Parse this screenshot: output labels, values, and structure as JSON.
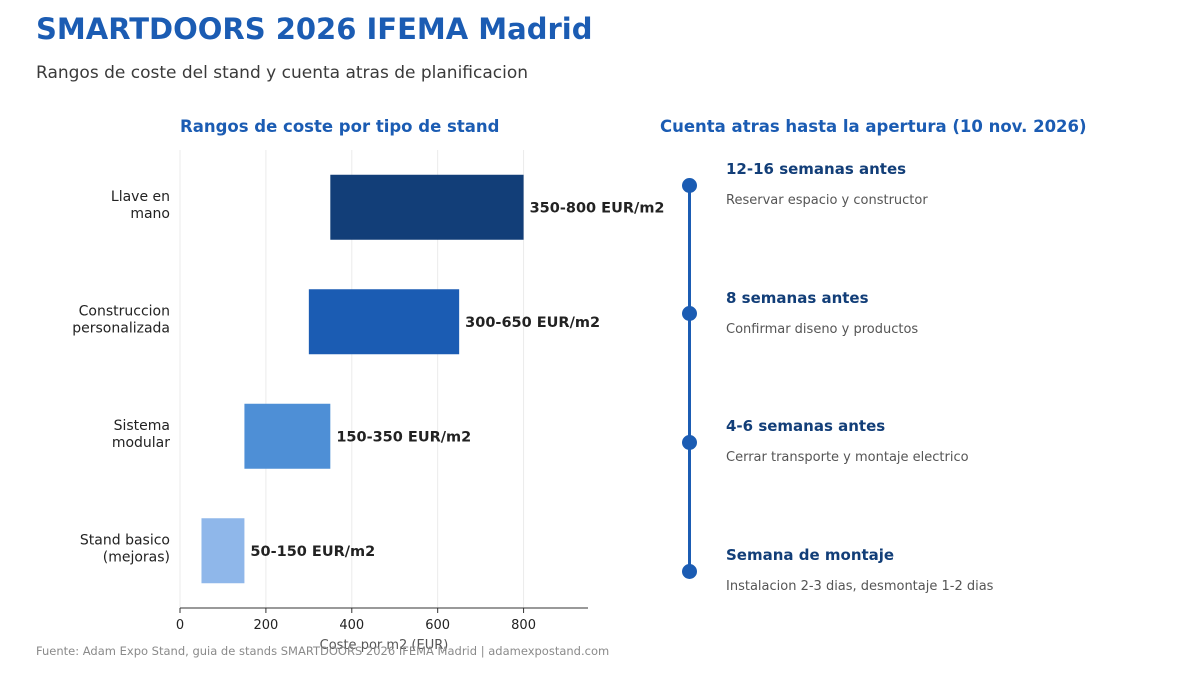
{
  "header": {
    "title": "SMARTDOORS 2026 IFEMA Madrid",
    "subtitle": "Rangos de coste del stand y cuenta atras de planificacion"
  },
  "chart_data": {
    "type": "bar",
    "orientation": "horizontal",
    "subtype": "range",
    "title": "Rangos de coste por tipo de stand",
    "xlabel": "Coste por m2 (EUR)",
    "ylabel": "",
    "xlim": [
      0,
      950
    ],
    "xticks": [
      0,
      200,
      400,
      600,
      800
    ],
    "grid": true,
    "categories": [
      [
        "Llave en",
        "mano"
      ],
      [
        "Construccion",
        "personalizada"
      ],
      [
        "Sistema",
        "modular"
      ],
      [
        "Stand basico",
        "(mejoras)"
      ]
    ],
    "ranges": [
      [
        350,
        800
      ],
      [
        300,
        650
      ],
      [
        150,
        350
      ],
      [
        50,
        150
      ]
    ],
    "labels": [
      "350-800 EUR/m2",
      "300-650 EUR/m2",
      "150-350 EUR/m2",
      "50-150 EUR/m2"
    ],
    "colors": [
      "#123e78",
      "#1b5cb3",
      "#4e8fd6",
      "#8fb7ea"
    ]
  },
  "timeline": {
    "title": "Cuenta atras hasta la apertura (10 nov. 2026)",
    "color": "#1b5cb3",
    "items": [
      {
        "label": "12-16 semanas antes",
        "desc": "Reservar espacio y constructor"
      },
      {
        "label": "8 semanas antes",
        "desc": "Confirmar diseno y productos"
      },
      {
        "label": "4-6 semanas antes",
        "desc": "Cerrar transporte y montaje electrico"
      },
      {
        "label": "Semana de montaje",
        "desc": "Instalacion 2-3 dias, desmontaje 1-2 dias"
      }
    ]
  },
  "footer": {
    "source": "Fuente: Adam Expo Stand, guia de stands SMARTDOORS 2026 IFEMA Madrid  |  adamexpostand.com"
  }
}
